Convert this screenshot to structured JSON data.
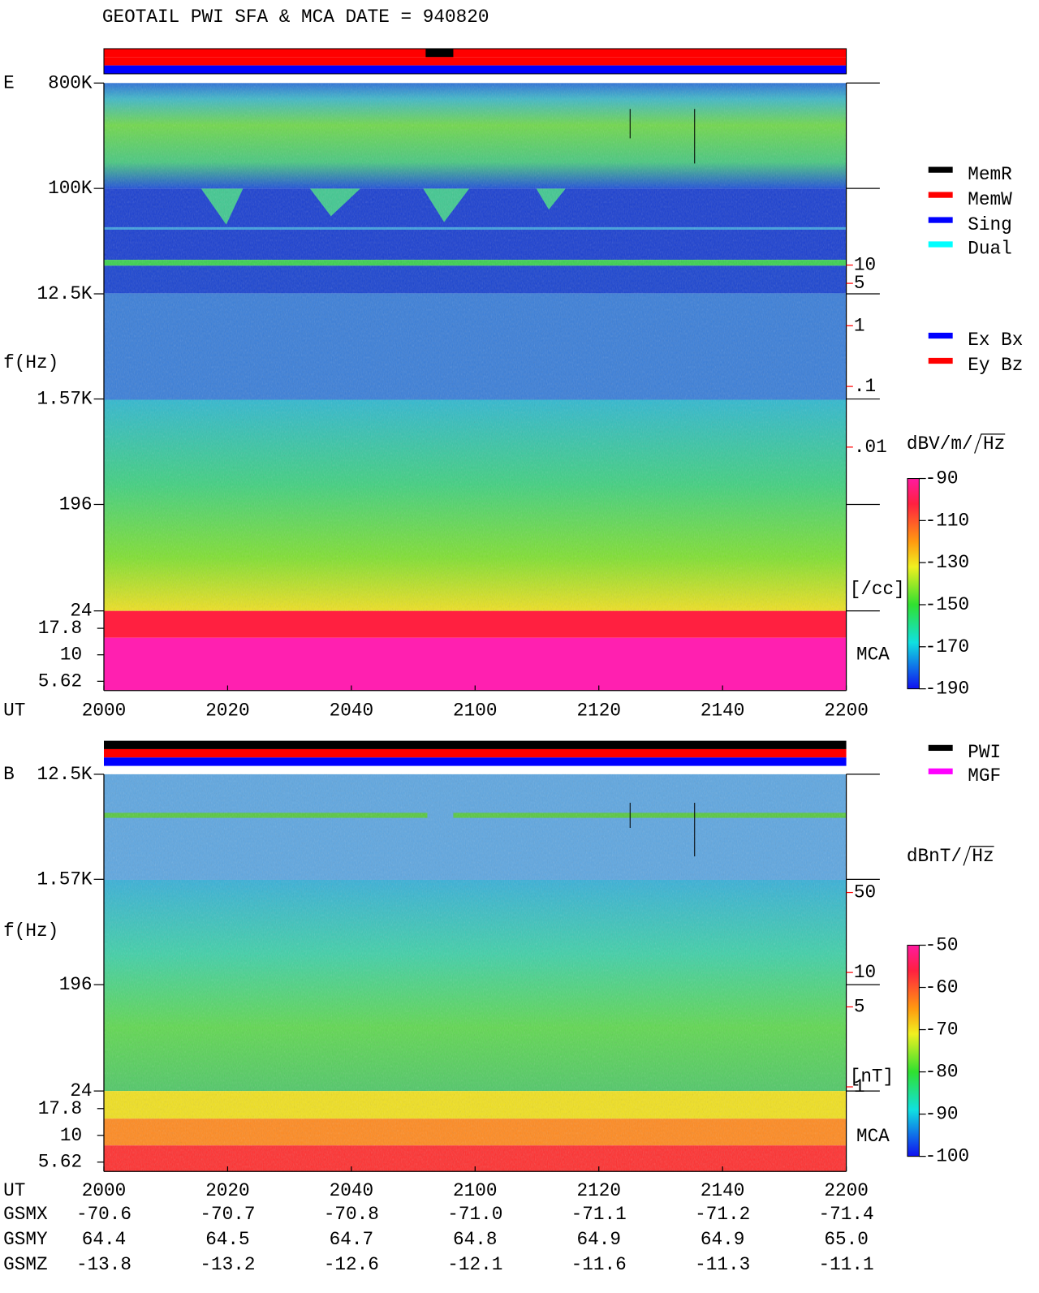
{
  "title": "GEOTAIL  PWI SFA & MCA   DATE = 940820",
  "chart_data": [
    {
      "type": "spectrogram",
      "panel_label": "E",
      "y_label": "f(Hz)",
      "x_label": "UT",
      "mca_label": "MCA",
      "xlim": [
        0,
        120
      ],
      "xticks": [
        {
          "value": 0,
          "label": "2000"
        },
        {
          "value": 20,
          "label": "2020"
        },
        {
          "value": 40,
          "label": "2040"
        },
        {
          "value": 60,
          "label": "2100"
        },
        {
          "value": 80,
          "label": "2120"
        },
        {
          "value": 100,
          "label": "2140"
        },
        {
          "value": 120,
          "label": "2200"
        }
      ],
      "log_y": true,
      "ylim": [
        24,
        800000
      ],
      "yticks": [
        {
          "value": 800000,
          "label": "800K"
        },
        {
          "value": 100000,
          "label": "100K"
        },
        {
          "value": 12500,
          "label": "12.5K"
        },
        {
          "value": 1570,
          "label": "1.57K"
        },
        196,
        24
      ],
      "mca_ylim": [
        4.6,
        26
      ],
      "mca_yticks": [
        17.8,
        10,
        5.62
      ],
      "colorbar": {
        "unit": "dBV/m/",
        "unit_root": "Hz",
        "lim": [
          -190,
          -90
        ],
        "ticks": [
          -90,
          -110,
          -130,
          -150,
          -170,
          -190
        ]
      },
      "right_scale": {
        "unit": "[/cc]",
        "color": "#ff0000",
        "log": true,
        "lim": [
          2e-05,
          10000
        ],
        "ticks": [
          10,
          5,
          1,
          {
            "value": 0.1,
            "label": ".1"
          },
          {
            "value": 0.01,
            "label": ".01"
          }
        ]
      },
      "legend": [
        {
          "name": "MemR",
          "color": "#000000"
        },
        {
          "name": "MemW",
          "color": "#ff0000"
        },
        {
          "name": "Sing",
          "color": "#0000ff"
        },
        {
          "name": "Dual",
          "color": "#00ffff"
        }
      ],
      "legend_sub": [
        {
          "name": "Ex Bx",
          "color": "#0000ff"
        },
        {
          "name": "Ey Bz",
          "color": "#ff0000"
        }
      ]
    },
    {
      "type": "spectrogram",
      "panel_label": "B",
      "y_label": "f(Hz)",
      "x_label": "UT",
      "mca_label": "MCA",
      "xlim": [
        0,
        120
      ],
      "xticks": [
        {
          "value": 0,
          "label": "2000"
        },
        {
          "value": 20,
          "label": "2020"
        },
        {
          "value": 40,
          "label": "2040"
        },
        {
          "value": 60,
          "label": "2100"
        },
        {
          "value": 80,
          "label": "2120"
        },
        {
          "value": 100,
          "label": "2140"
        },
        {
          "value": 120,
          "label": "2200"
        }
      ],
      "log_y": true,
      "ylim": [
        24,
        12500
      ],
      "yticks": [
        {
          "value": 12500,
          "label": "12.5K"
        },
        {
          "value": 1570,
          "label": "1.57K"
        },
        196,
        24
      ],
      "mca_ylim": [
        4.6,
        26
      ],
      "mca_yticks": [
        17.8,
        10,
        5.62
      ],
      "colorbar": {
        "unit": "dBnT/",
        "unit_root": "Hz",
        "lim": [
          -100,
          -50
        ],
        "ticks": [
          -50,
          -60,
          -70,
          -80,
          -90,
          -100
        ]
      },
      "right_scale": {
        "unit": "[nT]",
        "color": "#ff0000",
        "log": true,
        "lim": [
          0.92,
          540
        ],
        "ticks": [
          50,
          10,
          5,
          1
        ]
      },
      "legend": [
        {
          "name": "PWI",
          "color": "#000000"
        },
        {
          "name": "MGF",
          "color": "#ff00ff"
        }
      ]
    }
  ],
  "orbit": {
    "rows": [
      {
        "label": "GSMX",
        "values": [
          "-70.6",
          "-70.7",
          "-70.8",
          "-71.0",
          "-71.1",
          "-71.2",
          "-71.4"
        ]
      },
      {
        "label": "GSMY",
        "values": [
          "64.4",
          "64.5",
          "64.7",
          "64.8",
          "64.9",
          "64.9",
          "65.0"
        ]
      },
      {
        "label": "GSMZ",
        "values": [
          "-13.8",
          "-13.2",
          "-12.6",
          "-12.1",
          "-11.6",
          "-11.3",
          "-11.1"
        ]
      }
    ]
  }
}
